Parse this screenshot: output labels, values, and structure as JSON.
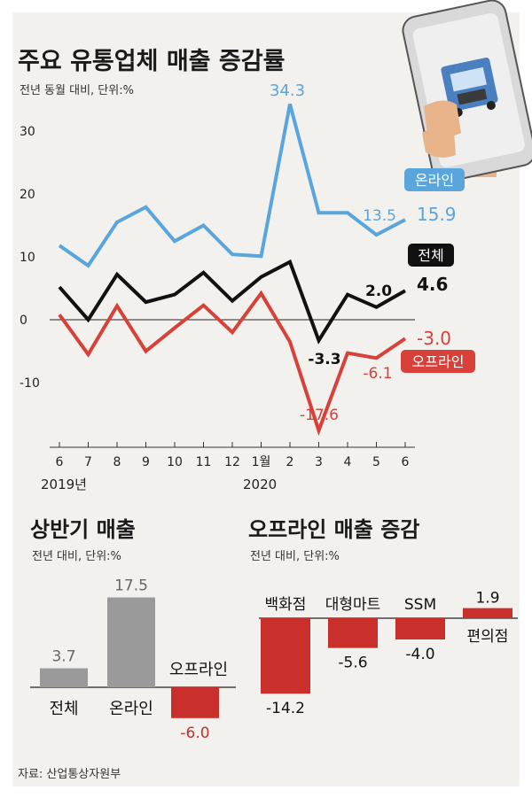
{
  "colors": {
    "online": "#5aa6dc",
    "total": "#111111",
    "offline": "#d8403a",
    "bar_gray": "#9a9a9a",
    "bar_red": "#c9302c"
  },
  "chart_data": [
    {
      "type": "line",
      "title": "주요 유통업체 매출 증감률",
      "subtitle": "전년 동월 대비, 단위:%",
      "x": [
        "6",
        "7",
        "8",
        "9",
        "10",
        "11",
        "12",
        "1월",
        "2",
        "3",
        "4",
        "5",
        "6"
      ],
      "year_labels": [
        "2019년",
        "2020"
      ],
      "ylim": [
        -20,
        35
      ],
      "yticks": [
        "30",
        "20",
        "10",
        "0",
        "-10"
      ],
      "series": [
        {
          "name": "온라인",
          "color": "#5aa6dc",
          "values": [
            11.8,
            8.6,
            15.5,
            17.9,
            12.5,
            15.0,
            10.4,
            10.1,
            34.3,
            17.0,
            17.0,
            13.5,
            15.9
          ]
        },
        {
          "name": "전체",
          "color": "#111111",
          "values": [
            5.2,
            0.0,
            7.2,
            2.8,
            4.0,
            7.5,
            3.0,
            6.8,
            9.2,
            -3.3,
            4.0,
            2.0,
            4.6
          ]
        },
        {
          "name": "오프라인",
          "color": "#d8403a",
          "values": [
            0.8,
            -5.5,
            2.2,
            -5.0,
            -1.3,
            2.3,
            -2.0,
            4.2,
            -3.5,
            -17.6,
            -5.3,
            -6.1,
            -3.0
          ]
        }
      ],
      "labels": {
        "online_peak": "34.3",
        "online_may": "13.5",
        "online_jun": "15.9",
        "total_mar": "-3.3",
        "total_may": "2.0",
        "total_jun": "4.6",
        "offline_mar": "-17.6",
        "offline_may": "-6.1",
        "offline_jun": "-3.0"
      },
      "legend": {
        "online": "온라인",
        "total": "전체",
        "offline": "오프라인"
      }
    },
    {
      "type": "bar",
      "title": "상반기 매출",
      "subtitle": "전년 대비, 단위:%",
      "categories": [
        "전체",
        "온라인",
        "오프라인"
      ],
      "values": [
        3.7,
        17.5,
        -6.0
      ],
      "value_labels": [
        "3.7",
        "17.5",
        "-6.0"
      ]
    },
    {
      "type": "bar",
      "title": "오프라인 매출 증감",
      "subtitle": "전년 대비, 단위:%",
      "categories": [
        "백화점",
        "대형마트",
        "SSM",
        "편의점"
      ],
      "values": [
        -14.2,
        -5.6,
        -4.0,
        1.9
      ],
      "value_labels": [
        "-14.2",
        "-5.6",
        "-4.0",
        "1.9"
      ]
    }
  ],
  "source": "자료: 산업통상자원부"
}
